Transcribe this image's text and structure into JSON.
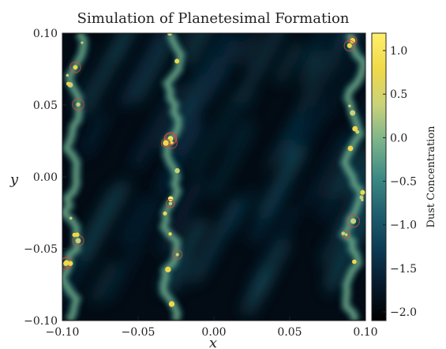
{
  "chart_data": {
    "type": "heatmap",
    "title": "Simulation of Planetesimal Formation",
    "xlabel": "x",
    "ylabel": "y",
    "xlim": [
      -0.1,
      0.1
    ],
    "ylim": [
      -0.1,
      0.1
    ],
    "x_ticks": [
      "−0.10",
      "−0.05",
      "0.00",
      "0.05",
      "0.10"
    ],
    "y_ticks": [
      "0.10",
      "0.05",
      "0.00",
      "−0.05",
      "−0.10"
    ],
    "colorbar": {
      "label": "Dust Concentration",
      "range": [
        -2.1,
        1.2
      ],
      "ticks": [
        "1.0",
        "0.5",
        "0.0",
        "−0.5",
        "−1.0",
        "−1.5",
        "−2.0"
      ],
      "colormap": [
        "#000000",
        "#061a2b",
        "#0d3b55",
        "#1f5f6e",
        "#3d8a85",
        "#7bb38a",
        "#c9d27a",
        "#f0d84a",
        "#fff06a"
      ]
    },
    "filaments": [
      {
        "x": -0.095,
        "y_from": -0.1,
        "y_to": 0.1,
        "peak": 1.0
      },
      {
        "x": -0.03,
        "y_from": -0.1,
        "y_to": 0.1,
        "peak": 1.1
      },
      {
        "x": 0.09,
        "y_from": -0.1,
        "y_to": 0.1,
        "peak": 0.9
      }
    ]
  }
}
